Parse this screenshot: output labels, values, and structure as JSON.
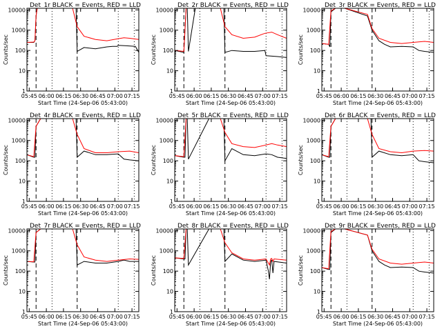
{
  "colors": {
    "events": "#000000",
    "lld": "#ff0000",
    "axes": "#000000",
    "background": "#ffffff"
  },
  "x_tick_labels": [
    "05:45",
    "06:00",
    "06:15",
    "06:30",
    "06:45",
    "07:00",
    "07:15"
  ],
  "y_tick_labels": [
    "1",
    "10",
    "100",
    "1000",
    "10000"
  ],
  "chart_data": [
    {
      "type": "line",
      "scale": "log-y",
      "title": "Det_1r BLACK = Events, RED = LLD",
      "xlabel": "Start Time (24-Sep-06 05:43:00)",
      "ylabel": "Counts/sec",
      "xlim_minutes": [
        0,
        98
      ],
      "ylim": [
        1,
        12000
      ],
      "series": [
        {
          "name": "Events",
          "x": [
            0,
            6,
            7,
            8,
            9,
            12,
            20,
            40,
            43,
            44,
            50,
            60,
            70,
            75,
            79,
            80,
            87,
            95,
            98
          ],
          "y": [
            250,
            250,
            300,
            5000,
            12000,
            12000,
            12000,
            12000,
            12000,
            90,
            140,
            120,
            150,
            160,
            160,
            180,
            170,
            160,
            80
          ]
        },
        {
          "name": "LLD",
          "x": [
            0,
            6,
            7,
            8,
            9,
            12,
            20,
            40,
            44,
            50,
            60,
            70,
            80,
            85,
            90,
            98
          ],
          "y": [
            250,
            260,
            300,
            5000,
            12000,
            12000,
            12000,
            12000,
            1500,
            500,
            350,
            300,
            380,
            420,
            400,
            350
          ]
        }
      ]
    },
    {
      "type": "line",
      "scale": "log-y",
      "title": "Det_2r BLACK = Events, RED = LLD",
      "xlabel": "Start Time (24-Sep-06 05:43:00)",
      "ylabel": "Counts/sec",
      "xlim_minutes": [
        0,
        98
      ],
      "ylim": [
        1,
        12000
      ],
      "series": [
        {
          "name": "Events",
          "x": [
            0,
            8,
            10,
            11,
            12,
            18,
            40,
            43,
            44,
            50,
            60,
            70,
            79,
            80,
            90,
            98
          ],
          "y": [
            100,
            80,
            12000,
            12000,
            90,
            12000,
            12000,
            12000,
            80,
            100,
            90,
            90,
            100,
            55,
            50,
            45
          ]
        },
        {
          "name": "LLD",
          "x": [
            0,
            8,
            10,
            12,
            18,
            40,
            44,
            50,
            60,
            70,
            79,
            85,
            90,
            98
          ],
          "y": [
            100,
            90,
            12000,
            12000,
            12000,
            12000,
            1500,
            600,
            400,
            450,
            700,
            800,
            600,
            400
          ]
        }
      ]
    },
    {
      "type": "line",
      "scale": "log-y",
      "title": "Det_3r BLACK = Events, RED = LLD",
      "xlabel": "Start Time (24-Sep-06 05:43:00)",
      "ylabel": "Counts/sec",
      "xlim_minutes": [
        0,
        98
      ],
      "ylim": [
        1,
        12000
      ],
      "series": [
        {
          "name": "Events",
          "x": [
            0,
            6,
            7,
            8,
            12,
            20,
            40,
            44,
            50,
            55,
            60,
            70,
            80,
            85,
            90,
            98
          ],
          "y": [
            220,
            200,
            150,
            8000,
            12000,
            12000,
            5000,
            1000,
            300,
            200,
            150,
            160,
            150,
            100,
            90,
            80
          ]
        },
        {
          "name": "LLD",
          "x": [
            0,
            6,
            8,
            12,
            20,
            40,
            44,
            50,
            60,
            70,
            80,
            90,
            98
          ],
          "y": [
            220,
            200,
            9000,
            12000,
            12000,
            6000,
            1200,
            400,
            250,
            220,
            250,
            280,
            250
          ]
        }
      ]
    },
    {
      "type": "line",
      "scale": "log-y",
      "title": "Det_4r BLACK = Events, RED = LLD",
      "xlabel": "Start Time (24-Sep-06 05:43:00)",
      "ylabel": "Counts/sec",
      "xlim_minutes": [
        0,
        98
      ],
      "ylim": [
        1,
        12000
      ],
      "series": [
        {
          "name": "Events",
          "x": [
            0,
            6,
            7,
            8,
            12,
            20,
            40,
            43,
            44,
            50,
            60,
            70,
            80,
            85,
            90,
            98
          ],
          "y": [
            200,
            150,
            150,
            5000,
            12000,
            12000,
            12000,
            12000,
            150,
            300,
            200,
            200,
            220,
            120,
            110,
            100
          ]
        },
        {
          "name": "LLD",
          "x": [
            0,
            6,
            8,
            12,
            20,
            40,
            44,
            50,
            60,
            70,
            80,
            90,
            98
          ],
          "y": [
            200,
            160,
            5000,
            12000,
            12000,
            12000,
            2000,
            400,
            250,
            250,
            280,
            300,
            250
          ]
        }
      ]
    },
    {
      "type": "line",
      "scale": "log-y",
      "title": "Det_5r BLACK = Events, RED = LLD",
      "xlabel": "Start Time (24-Sep-06 05:43:00)",
      "ylabel": "Counts/sec",
      "xlim_minutes": [
        0,
        98
      ],
      "ylim": [
        1,
        12000
      ],
      "series": [
        {
          "name": "Events",
          "x": [
            0,
            8,
            9,
            10,
            11,
            12,
            30,
            40,
            43,
            44,
            50,
            60,
            70,
            80,
            85,
            90,
            98
          ],
          "y": [
            180,
            150,
            150,
            12000,
            12000,
            120,
            12000,
            12000,
            12000,
            100,
            400,
            200,
            180,
            220,
            200,
            150,
            130
          ]
        },
        {
          "name": "LLD",
          "x": [
            0,
            8,
            10,
            12,
            30,
            40,
            44,
            50,
            60,
            70,
            80,
            85,
            90,
            98
          ],
          "y": [
            180,
            160,
            12000,
            12000,
            12000,
            12000,
            2500,
            700,
            500,
            450,
            600,
            700,
            600,
            500
          ]
        }
      ]
    },
    {
      "type": "line",
      "scale": "log-y",
      "title": "Det_6r BLACK = Events, RED = LLD",
      "xlabel": "Start Time (24-Sep-06 05:43:00)",
      "ylabel": "Counts/sec",
      "xlim_minutes": [
        0,
        98
      ],
      "ylim": [
        1,
        12000
      ],
      "series": [
        {
          "name": "Events",
          "x": [
            0,
            6,
            7,
            8,
            12,
            20,
            40,
            43,
            44,
            50,
            60,
            70,
            80,
            85,
            90,
            98
          ],
          "y": [
            200,
            150,
            150,
            5000,
            12000,
            12000,
            12000,
            12000,
            150,
            300,
            200,
            180,
            200,
            100,
            90,
            80
          ]
        },
        {
          "name": "LLD",
          "x": [
            0,
            6,
            8,
            12,
            20,
            40,
            44,
            50,
            60,
            70,
            80,
            90,
            98
          ],
          "y": [
            200,
            160,
            5000,
            12000,
            12000,
            12000,
            2000,
            400,
            280,
            250,
            300,
            320,
            300
          ]
        }
      ]
    },
    {
      "type": "line",
      "scale": "log-y",
      "title": "Det_7r BLACK = Events, RED = LLD",
      "xlabel": "Start Time (24-Sep-06 05:43:00)",
      "ylabel": "Counts/sec",
      "xlim_minutes": [
        0,
        98
      ],
      "ylim": [
        1,
        12000
      ],
      "series": [
        {
          "name": "Events",
          "x": [
            0,
            6,
            7,
            8,
            12,
            20,
            40,
            43,
            44,
            50,
            60,
            70,
            80,
            85,
            90,
            98
          ],
          "y": [
            300,
            280,
            280,
            8000,
            12000,
            12000,
            12000,
            12000,
            200,
            300,
            250,
            250,
            300,
            350,
            300,
            300
          ]
        },
        {
          "name": "LLD",
          "x": [
            0,
            6,
            8,
            12,
            20,
            40,
            44,
            50,
            60,
            70,
            80,
            90,
            98
          ],
          "y": [
            300,
            290,
            8000,
            12000,
            12000,
            12000,
            2000,
            500,
            350,
            300,
            350,
            400,
            380
          ]
        }
      ]
    },
    {
      "type": "line",
      "scale": "log-y",
      "title": "Det_8r BLACK = Events, RED = LLD",
      "xlabel": "Start Time (24-Sep-06 05:43:00)",
      "ylabel": "Counts/sec",
      "xlim_minutes": [
        0,
        98
      ],
      "ylim": [
        1,
        12000
      ],
      "series": [
        {
          "name": "Events",
          "x": [
            0,
            8,
            9,
            10,
            11,
            12,
            30,
            40,
            43,
            44,
            50,
            60,
            70,
            80,
            82,
            83,
            84,
            85,
            86,
            87,
            98
          ],
          "y": [
            450,
            400,
            400,
            12000,
            12000,
            200,
            12000,
            12000,
            12000,
            300,
            700,
            350,
            300,
            350,
            100,
            40,
            300,
            350,
            80,
            300,
            250
          ]
        },
        {
          "name": "LLD",
          "x": [
            0,
            8,
            10,
            12,
            30,
            40,
            44,
            50,
            60,
            70,
            80,
            82,
            83,
            84,
            85,
            86,
            87,
            98
          ],
          "y": [
            450,
            420,
            12000,
            12000,
            12000,
            12000,
            2500,
            800,
            400,
            350,
            400,
            250,
            200,
            400,
            420,
            300,
            400,
            350
          ]
        }
      ]
    },
    {
      "type": "line",
      "scale": "log-y",
      "title": "Det_9r BLACK = Events, RED = LLD",
      "xlabel": "Start Time (24-Sep-06 05:43:00)",
      "ylabel": "Counts/sec",
      "xlim_minutes": [
        0,
        98
      ],
      "ylim": [
        1,
        12000
      ],
      "series": [
        {
          "name": "Events",
          "x": [
            0,
            6,
            7,
            8,
            12,
            20,
            40,
            44,
            50,
            55,
            60,
            70,
            80,
            85,
            90,
            98
          ],
          "y": [
            150,
            120,
            120,
            8000,
            12000,
            12000,
            6000,
            1000,
            300,
            200,
            150,
            160,
            150,
            100,
            90,
            80
          ]
        },
        {
          "name": "LLD",
          "x": [
            0,
            6,
            8,
            12,
            20,
            40,
            44,
            50,
            60,
            70,
            80,
            90,
            98
          ],
          "y": [
            150,
            130,
            9000,
            12000,
            12000,
            6000,
            1200,
            400,
            250,
            220,
            250,
            280,
            250
          ]
        }
      ]
    }
  ]
}
